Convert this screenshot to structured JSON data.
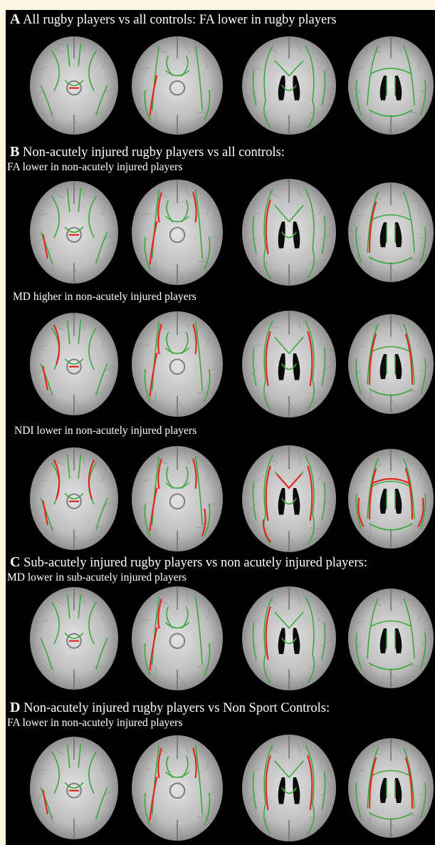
{
  "panels": [
    {
      "letter": "A",
      "heading": "All rugby players vs all controls: FA lower in rugby players",
      "rows": [
        {
          "label": "",
          "red_level": [
            0.25,
            0.15,
            0.05,
            0.0
          ]
        }
      ]
    },
    {
      "letter": "B",
      "heading": "Non-acutely injured rugby players vs all controls:",
      "rows": [
        {
          "label": "FA lower in non-acutely injured players",
          "red_level": [
            0.35,
            0.5,
            0.25,
            0.15
          ]
        },
        {
          "label": "MD higher in non-acutely injured players",
          "red_level": [
            0.6,
            0.55,
            0.45,
            0.4
          ]
        },
        {
          "label": "NDI lower in non-acutely injured players",
          "red_level": [
            0.7,
            0.75,
            0.7,
            0.9
          ]
        }
      ]
    },
    {
      "letter": "C",
      "heading": "Sub-acutely injured rugby players vs non acutely injured players:",
      "rows": [
        {
          "label": "MD lower in sub-acutely injured players",
          "red_level": [
            0.2,
            0.3,
            0.1,
            0.0
          ]
        }
      ]
    },
    {
      "letter": "D",
      "heading": "Non-acutely injured rugby players vs Non Sport Controls:",
      "rows": [
        {
          "label": "FA lower in non-acutely injured players",
          "red_level": [
            0.4,
            0.55,
            0.45,
            0.25
          ]
        }
      ]
    }
  ],
  "colors": {
    "background": "#000000",
    "page": "#fbf5df",
    "skeleton": "#39a83a",
    "significant": "#e0271f",
    "brain": "#bdbdbd"
  }
}
